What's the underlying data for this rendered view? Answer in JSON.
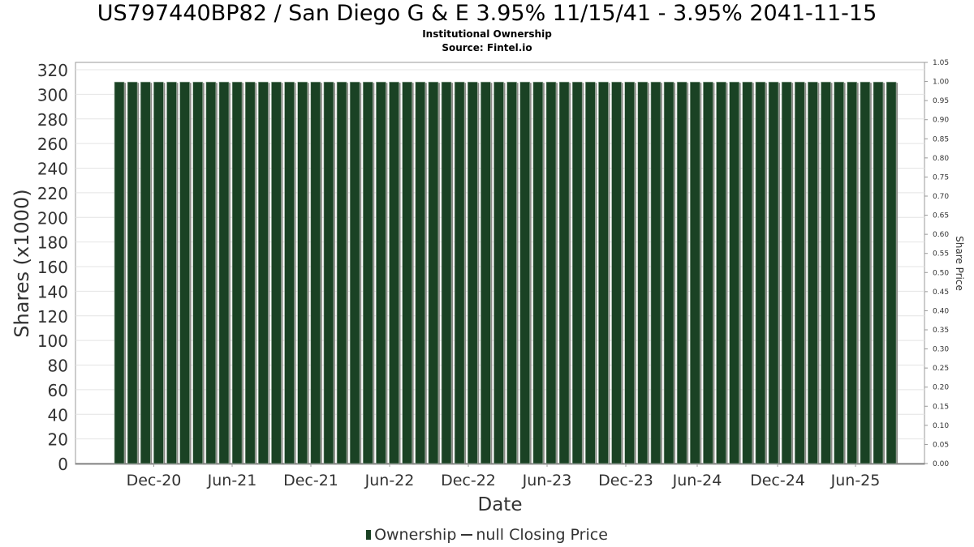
{
  "title": "US797440BP82 / San Diego G & E 3.95% 11/15/41 - 3.95% 2041-11-15",
  "subtitle": "Institutional Ownership",
  "source": "Source: Fintel.io",
  "colors": {
    "bar": "#1a4224",
    "bar_shadow": "#8a8a86",
    "grid": "#e4e4e4",
    "axis": "#999999"
  },
  "legend": {
    "ownership": "Ownership",
    "price": "null Closing Price"
  },
  "chart_data": {
    "type": "bar",
    "xlabel": "Date",
    "ylabel": "Shares (x1000)",
    "y2label": "Share Price",
    "ylim": [
      0,
      320
    ],
    "y2lim": [
      0,
      1.05
    ],
    "yticks": [
      "0",
      "20",
      "40",
      "60",
      "80",
      "100",
      "120",
      "140",
      "160",
      "180",
      "200",
      "220",
      "240",
      "260",
      "280",
      "300",
      "320"
    ],
    "y2ticks": [
      "0.00",
      "0.05",
      "0.10",
      "0.15",
      "0.20",
      "0.25",
      "0.30",
      "0.35",
      "0.40",
      "0.45",
      "0.50",
      "0.55",
      "0.60",
      "0.65",
      "0.70",
      "0.75",
      "0.80",
      "0.85",
      "0.90",
      "0.95",
      "1.00",
      "1.05"
    ],
    "xticks": [
      "Dec-20",
      "Jun-21",
      "Dec-21",
      "Jun-22",
      "Dec-22",
      "Jun-23",
      "Dec-23",
      "Jun-24",
      "Dec-24",
      "Jun-25"
    ],
    "date_range": [
      "Aug-20",
      "Sep-25"
    ],
    "grid": true,
    "series": [
      {
        "name": "Ownership",
        "type": "bar",
        "bar_count": 60,
        "value": 310
      },
      {
        "name": "null Closing Price",
        "type": "line",
        "values": []
      }
    ]
  }
}
